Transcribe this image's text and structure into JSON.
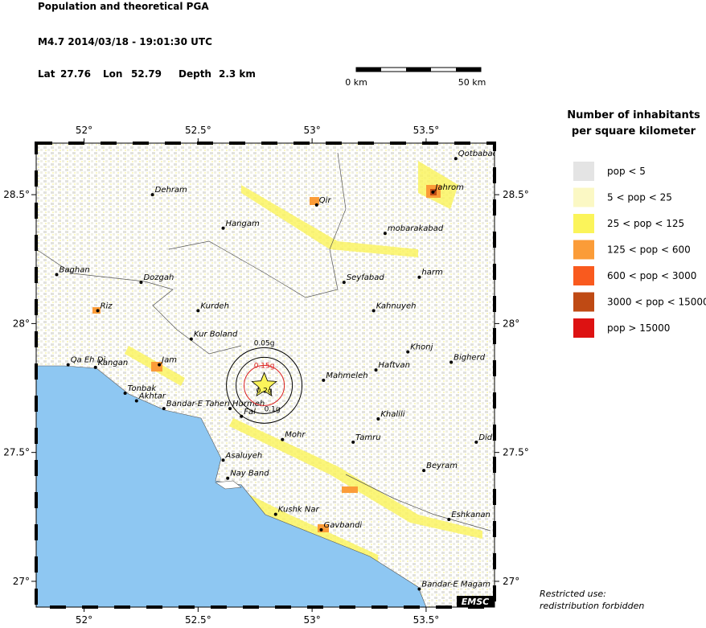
{
  "header": {
    "title": "Population and theoretical PGA",
    "event": "M4.7  2014/03/18 - 19:01:30 UTC",
    "lat_label": "Lat",
    "lat": 27.76,
    "lon_label": "Lon",
    "lon": 52.79,
    "depth_label": "Depth",
    "depth": "2.3 km"
  },
  "scale_bar": {
    "start": "0 km",
    "end": "50 km"
  },
  "map": {
    "lonlim": [
      51.79,
      53.8
    ],
    "latlim": [
      26.9,
      28.7
    ],
    "lon_ticks": [
      {
        "value": 52,
        "label": "52°"
      },
      {
        "value": 52.5,
        "label": "52.5°"
      },
      {
        "value": 53,
        "label": "53°"
      },
      {
        "value": 53.5,
        "label": "53.5°"
      }
    ],
    "lat_ticks": [
      {
        "value": 28.5,
        "label": "28.5°"
      },
      {
        "value": 28,
        "label": "28°"
      },
      {
        "value": 27.5,
        "label": "27.5°"
      },
      {
        "value": 27,
        "label": "27°"
      }
    ],
    "cities": [
      {
        "name": "Qotbabad",
        "lon": 53.63,
        "lat": 28.64
      },
      {
        "name": "Dehram",
        "lon": 52.3,
        "lat": 28.5
      },
      {
        "name": "Qir",
        "lon": 53.02,
        "lat": 28.46
      },
      {
        "name": "Jahrom",
        "lon": 53.53,
        "lat": 28.51
      },
      {
        "name": "Hangam",
        "lon": 52.61,
        "lat": 28.37
      },
      {
        "name": "mobarakabad",
        "lon": 53.32,
        "lat": 28.35
      },
      {
        "name": "Baghan",
        "lon": 51.88,
        "lat": 28.19
      },
      {
        "name": "Dozgah",
        "lon": 52.25,
        "lat": 28.16
      },
      {
        "name": "Seyfabad",
        "lon": 53.14,
        "lat": 28.16
      },
      {
        "name": "harm",
        "lon": 53.47,
        "lat": 28.18
      },
      {
        "name": "Kahnuyeh",
        "lon": 53.27,
        "lat": 28.05
      },
      {
        "name": "Riz",
        "lon": 52.06,
        "lat": 28.05
      },
      {
        "name": "Kurdeh",
        "lon": 52.5,
        "lat": 28.05
      },
      {
        "name": "Kur Boland",
        "lon": 52.47,
        "lat": 27.94
      },
      {
        "name": "Khonj",
        "lon": 53.42,
        "lat": 27.89
      },
      {
        "name": "Bigherd",
        "lon": 53.61,
        "lat": 27.85
      },
      {
        "name": "Qa Eh Di",
        "lon": 51.93,
        "lat": 27.84
      },
      {
        "name": "Kangan",
        "lon": 52.05,
        "lat": 27.83
      },
      {
        "name": "Jam",
        "lon": 52.33,
        "lat": 27.84
      },
      {
        "name": "Haftvan",
        "lon": 53.28,
        "lat": 27.82
      },
      {
        "name": "Mahmeleh",
        "lon": 53.05,
        "lat": 27.78
      },
      {
        "name": "Tonbak",
        "lon": 52.18,
        "lat": 27.73
      },
      {
        "name": "Akhtar",
        "lon": 52.23,
        "lat": 27.7
      },
      {
        "name": "Bandar-E Taheri",
        "lon": 52.35,
        "lat": 27.67
      },
      {
        "name": "Hurmeh",
        "lon": 52.64,
        "lat": 27.67
      },
      {
        "name": "Fal",
        "lon": 52.69,
        "lat": 27.64
      },
      {
        "name": "Khalili",
        "lon": 53.29,
        "lat": 27.63
      },
      {
        "name": "Mohr",
        "lon": 52.87,
        "lat": 27.55
      },
      {
        "name": "Tamru",
        "lon": 53.18,
        "lat": 27.54
      },
      {
        "name": "Did",
        "lon": 53.72,
        "lat": 27.54
      },
      {
        "name": "Asaluyeh",
        "lon": 52.61,
        "lat": 27.47
      },
      {
        "name": "Beyram",
        "lon": 53.49,
        "lat": 27.43
      },
      {
        "name": "Nay Band",
        "lon": 52.63,
        "lat": 27.4
      },
      {
        "name": "Kushk Nar",
        "lon": 52.84,
        "lat": 27.26
      },
      {
        "name": "Eshkanan",
        "lon": 53.6,
        "lat": 27.24
      },
      {
        "name": "Gavbandi",
        "lon": 53.04,
        "lat": 27.2
      },
      {
        "name": "Bandar-E Magam",
        "lon": 53.47,
        "lat": 26.97
      }
    ],
    "pga_contours": [
      "0.05g",
      "0.1g",
      "0.15g",
      "0.2g"
    ],
    "credit": "EMSC"
  },
  "legend": {
    "title_lines": [
      "Number of inhabitants",
      "per square kilometer"
    ],
    "items": [
      {
        "label": "pop < 5",
        "color": "#e4e4e4"
      },
      {
        "label": "5 < pop < 25",
        "color": "#fbf8c4"
      },
      {
        "label": "25 < pop < 125",
        "color": "#fbf45a"
      },
      {
        "label": "125 < pop < 600",
        "color": "#fb9c38"
      },
      {
        "label": "600 < pop < 3000",
        "color": "#f95a1e"
      },
      {
        "label": "3000 < pop < 15000",
        "color": "#bf4a14"
      },
      {
        "label": "pop > 15000",
        "color": "#dd1212"
      }
    ]
  },
  "footer": {
    "lines": [
      "Restricted use:",
      "redistribution forbidden"
    ]
  }
}
